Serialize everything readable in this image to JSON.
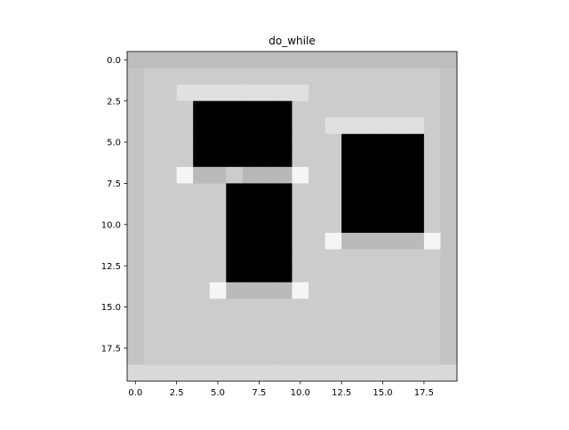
{
  "chart_data": {
    "type": "heatmap",
    "title": "do_while",
    "xlabel": "",
    "ylabel": "",
    "colormap": "gray",
    "rows": 20,
    "cols": 20,
    "xlim": [
      -0.5,
      19.5
    ],
    "ylim": [
      19.5,
      -0.5
    ],
    "xticks": [
      0.0,
      2.5,
      5.0,
      7.5,
      10.0,
      12.5,
      15.0,
      17.5
    ],
    "xtick_labels": [
      "0.0",
      "2.5",
      "5.0",
      "7.5",
      "10.0",
      "12.5",
      "15.0",
      "17.5"
    ],
    "yticks": [
      0.0,
      2.5,
      5.0,
      7.5,
      10.0,
      12.5,
      15.0,
      17.5
    ],
    "ytick_labels": [
      "0.0",
      "2.5",
      "5.0",
      "7.5",
      "10.0",
      "12.5",
      "15.0",
      "17.5"
    ],
    "grid": false,
    "values": [
      [
        0.74,
        0.74,
        0.74,
        0.74,
        0.74,
        0.74,
        0.74,
        0.74,
        0.74,
        0.74,
        0.74,
        0.74,
        0.74,
        0.74,
        0.74,
        0.74,
        0.74,
        0.74,
        0.74,
        0.74
      ],
      [
        0.77,
        0.8,
        0.8,
        0.8,
        0.8,
        0.8,
        0.8,
        0.8,
        0.8,
        0.8,
        0.8,
        0.8,
        0.8,
        0.8,
        0.8,
        0.8,
        0.8,
        0.8,
        0.8,
        0.77
      ],
      [
        0.77,
        0.8,
        0.8,
        0.88,
        0.88,
        0.88,
        0.88,
        0.88,
        0.88,
        0.88,
        0.88,
        0.8,
        0.8,
        0.8,
        0.8,
        0.8,
        0.8,
        0.8,
        0.8,
        0.77
      ],
      [
        0.77,
        0.8,
        0.8,
        0.8,
        0.0,
        0.0,
        0.0,
        0.0,
        0.0,
        0.0,
        0.8,
        0.8,
        0.8,
        0.8,
        0.8,
        0.8,
        0.8,
        0.8,
        0.8,
        0.77
      ],
      [
        0.77,
        0.8,
        0.8,
        0.8,
        0.0,
        0.0,
        0.0,
        0.0,
        0.0,
        0.0,
        0.8,
        0.8,
        0.88,
        0.88,
        0.88,
        0.88,
        0.88,
        0.88,
        0.8,
        0.77
      ],
      [
        0.77,
        0.8,
        0.8,
        0.8,
        0.0,
        0.0,
        0.0,
        0.0,
        0.0,
        0.0,
        0.8,
        0.8,
        0.8,
        0.0,
        0.0,
        0.0,
        0.0,
        0.0,
        0.8,
        0.77
      ],
      [
        0.77,
        0.8,
        0.8,
        0.8,
        0.0,
        0.0,
        0.0,
        0.0,
        0.0,
        0.0,
        0.8,
        0.8,
        0.8,
        0.0,
        0.0,
        0.0,
        0.0,
        0.0,
        0.8,
        0.77
      ],
      [
        0.77,
        0.8,
        0.8,
        0.96,
        0.73,
        0.73,
        0.8,
        0.72,
        0.72,
        0.72,
        0.96,
        0.8,
        0.8,
        0.0,
        0.0,
        0.0,
        0.0,
        0.0,
        0.8,
        0.77
      ],
      [
        0.77,
        0.8,
        0.8,
        0.8,
        0.8,
        0.8,
        0.0,
        0.0,
        0.0,
        0.0,
        0.8,
        0.8,
        0.8,
        0.0,
        0.0,
        0.0,
        0.0,
        0.0,
        0.8,
        0.77
      ],
      [
        0.77,
        0.8,
        0.8,
        0.8,
        0.8,
        0.8,
        0.0,
        0.0,
        0.0,
        0.0,
        0.8,
        0.8,
        0.8,
        0.0,
        0.0,
        0.0,
        0.0,
        0.0,
        0.8,
        0.77
      ],
      [
        0.77,
        0.8,
        0.8,
        0.8,
        0.8,
        0.8,
        0.0,
        0.0,
        0.0,
        0.0,
        0.8,
        0.8,
        0.8,
        0.0,
        0.0,
        0.0,
        0.0,
        0.0,
        0.8,
        0.77
      ],
      [
        0.77,
        0.8,
        0.8,
        0.8,
        0.8,
        0.8,
        0.0,
        0.0,
        0.0,
        0.0,
        0.8,
        0.8,
        0.96,
        0.73,
        0.73,
        0.73,
        0.73,
        0.73,
        0.96,
        0.77
      ],
      [
        0.77,
        0.8,
        0.8,
        0.8,
        0.8,
        0.8,
        0.0,
        0.0,
        0.0,
        0.0,
        0.8,
        0.8,
        0.8,
        0.8,
        0.8,
        0.8,
        0.8,
        0.8,
        0.8,
        0.77
      ],
      [
        0.77,
        0.8,
        0.8,
        0.8,
        0.8,
        0.8,
        0.0,
        0.0,
        0.0,
        0.0,
        0.8,
        0.8,
        0.8,
        0.8,
        0.8,
        0.8,
        0.8,
        0.8,
        0.8,
        0.77
      ],
      [
        0.77,
        0.8,
        0.8,
        0.8,
        0.8,
        0.96,
        0.73,
        0.73,
        0.73,
        0.73,
        0.96,
        0.8,
        0.8,
        0.8,
        0.8,
        0.8,
        0.8,
        0.8,
        0.8,
        0.77
      ],
      [
        0.77,
        0.8,
        0.8,
        0.8,
        0.8,
        0.8,
        0.8,
        0.8,
        0.8,
        0.8,
        0.8,
        0.8,
        0.8,
        0.8,
        0.8,
        0.8,
        0.8,
        0.8,
        0.8,
        0.77
      ],
      [
        0.77,
        0.8,
        0.8,
        0.8,
        0.8,
        0.8,
        0.8,
        0.8,
        0.8,
        0.8,
        0.8,
        0.8,
        0.8,
        0.8,
        0.8,
        0.8,
        0.8,
        0.8,
        0.8,
        0.77
      ],
      [
        0.77,
        0.8,
        0.8,
        0.8,
        0.8,
        0.8,
        0.8,
        0.8,
        0.8,
        0.8,
        0.8,
        0.8,
        0.8,
        0.8,
        0.8,
        0.8,
        0.8,
        0.8,
        0.8,
        0.77
      ],
      [
        0.77,
        0.8,
        0.8,
        0.8,
        0.8,
        0.8,
        0.8,
        0.8,
        0.8,
        0.8,
        0.8,
        0.8,
        0.8,
        0.8,
        0.8,
        0.8,
        0.8,
        0.8,
        0.8,
        0.77
      ],
      [
        0.85,
        0.85,
        0.85,
        0.85,
        0.85,
        0.85,
        0.85,
        0.85,
        0.85,
        0.85,
        0.85,
        0.85,
        0.85,
        0.85,
        0.85,
        0.85,
        0.85,
        0.85,
        0.85,
        0.85
      ]
    ]
  }
}
